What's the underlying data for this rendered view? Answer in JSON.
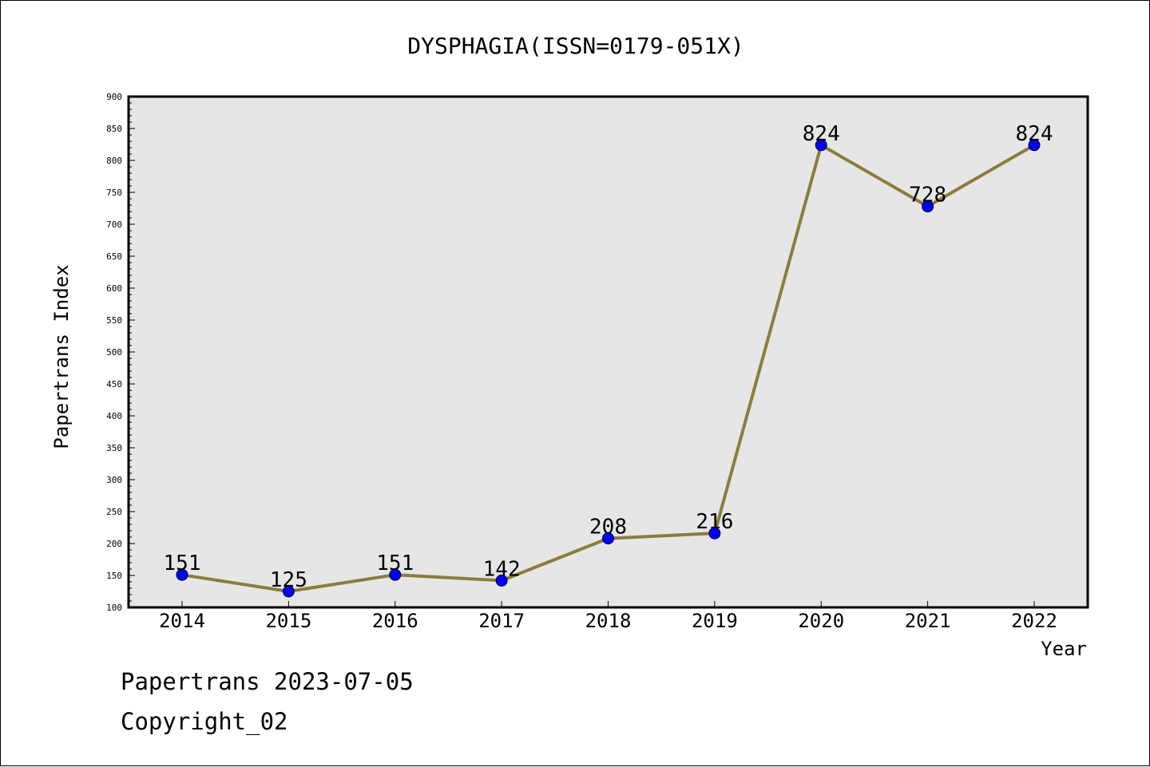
{
  "chart_data": {
    "type": "line",
    "title": "DYSPHAGIA(ISSN=0179-051X)",
    "xlabel": "Year",
    "ylabel": "Papertrans Index",
    "categories": [
      "2014",
      "2015",
      "2016",
      "2017",
      "2018",
      "2019",
      "2020",
      "2021",
      "2022"
    ],
    "series": [
      {
        "values": [
          151,
          125,
          151,
          142,
          208,
          216,
          824,
          728,
          824
        ]
      }
    ],
    "ylim": [
      100,
      900
    ],
    "yticks": [
      "100",
      "150",
      "200",
      "250",
      "300",
      "350",
      "400",
      "450",
      "500",
      "550",
      "600",
      "650",
      "700",
      "750",
      "800",
      "850",
      "900"
    ],
    "grid": false,
    "legend": "none",
    "data_labels": true,
    "colors": {
      "line": "#8b7d3a",
      "marker": "#0000ff",
      "plot_background": "#e6e6e6",
      "frame": "#000000"
    }
  },
  "footer": {
    "line1": "Papertrans 2023-07-05",
    "line2": "Copyright_02"
  }
}
